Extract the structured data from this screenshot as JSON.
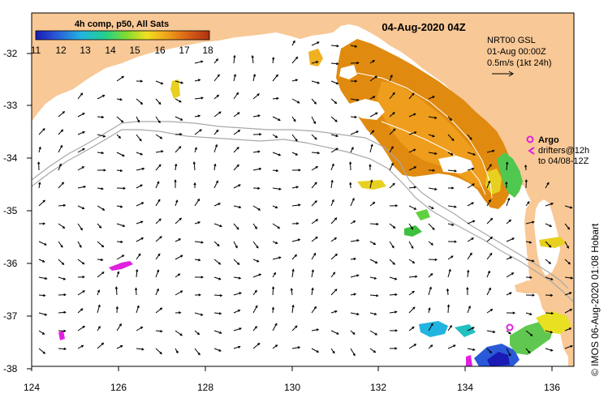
{
  "title": "04-Aug-2020 04Z",
  "colorbar": {
    "title": "4h comp, p50, All Sats",
    "ticks": [
      "11",
      "12",
      "13",
      "14",
      "15",
      "16",
      "17",
      "18"
    ],
    "min": 11,
    "max": 18,
    "colors": [
      "#1a1ab4",
      "#2a5ad8",
      "#22b4e0",
      "#22d08c",
      "#80dc30",
      "#f0e020",
      "#f0a018",
      "#d86018",
      "#b03010"
    ]
  },
  "current_info": {
    "line1": "NRT00 GSL",
    "line2": "01-Aug 00:00Z",
    "line3": "0.5m/s (1kt 24h)"
  },
  "argo": {
    "label": "Argo",
    "drifters_line1": "drifters@12h",
    "drifters_line2": "to 04/08-12Z",
    "color": "#e020e0"
  },
  "axes": {
    "lon_ticks": [
      "124",
      "126",
      "128",
      "130",
      "132",
      "134",
      "136"
    ],
    "lat_ticks": [
      "-32",
      "-33",
      "-34",
      "-35",
      "-36",
      "-37",
      "-38"
    ],
    "lon_range": [
      124,
      136.5
    ],
    "lat_range": [
      -38.2,
      -31.3
    ]
  },
  "credit": "© IMOS 06-Aug-2020 01:08 Hobart",
  "colors": {
    "land": "#f8c896",
    "sea": "#ffffff",
    "sst_warm": "#e08a10",
    "sst_mid": "#f0b020",
    "bathymetry": "#a8a8a8",
    "vectors": "#000000"
  }
}
